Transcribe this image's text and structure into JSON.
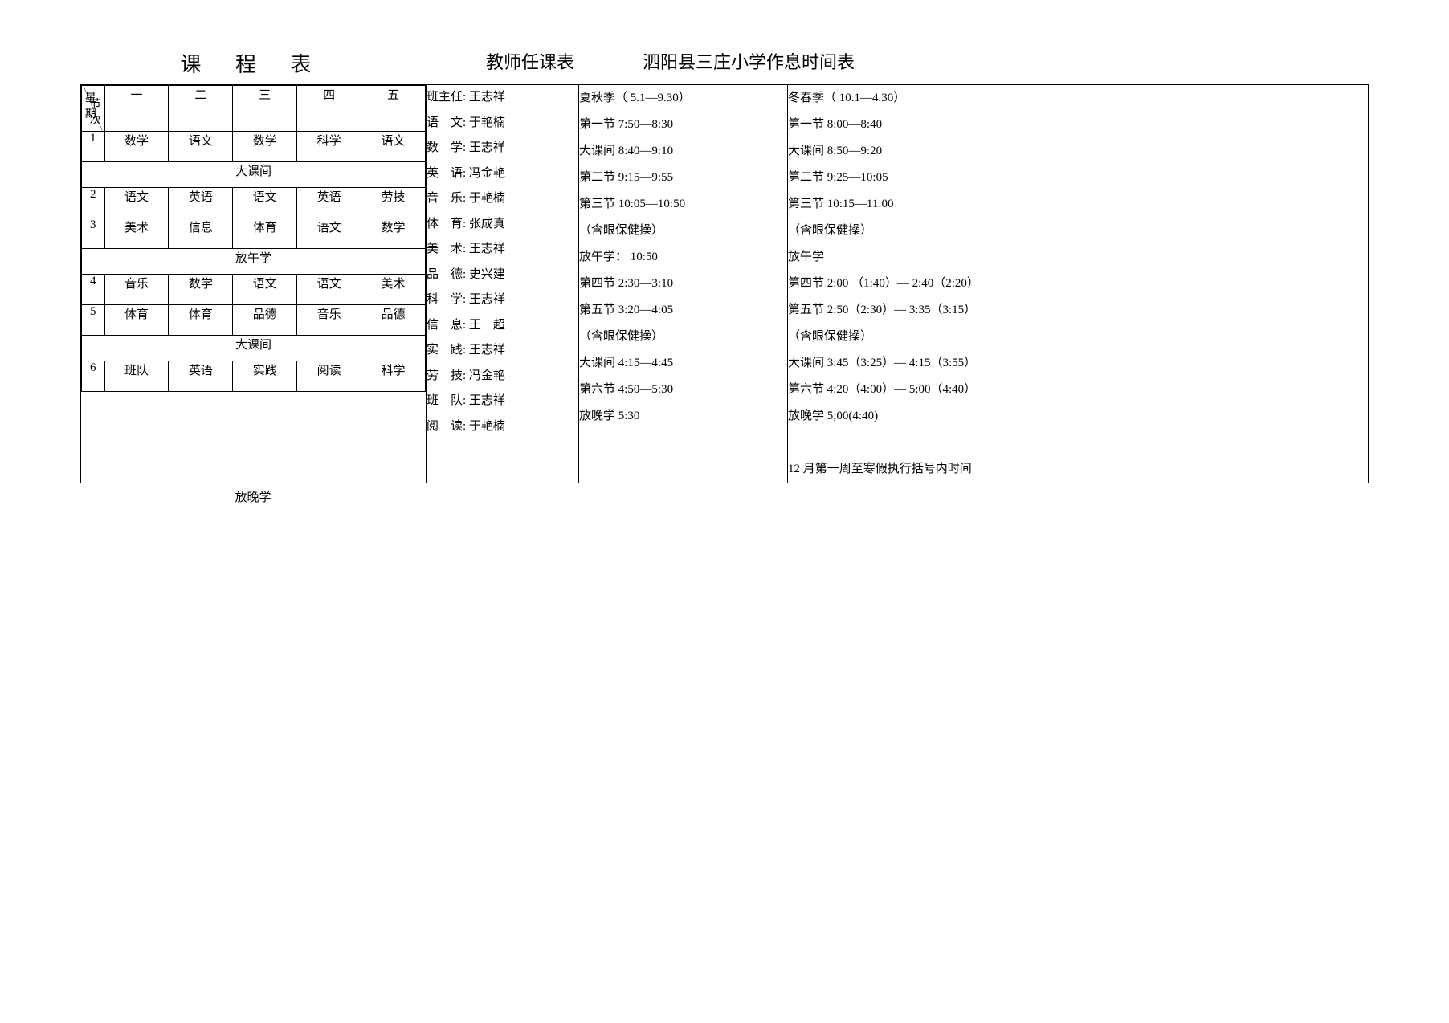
{
  "titles": {
    "schedule": "课 程 表",
    "teachers": "教师任课表",
    "timetable": "泗阳县三庄小学作息时间表"
  },
  "schedule": {
    "header_top": "星期",
    "header_bottom": "节次",
    "days": [
      "一",
      "二",
      "三",
      "四",
      "五"
    ],
    "rows": [
      {
        "period": "1",
        "cells": [
          "数学",
          "语文",
          "数学",
          "科学",
          "语文"
        ]
      },
      {
        "break": "大课间"
      },
      {
        "period": "2",
        "cells": [
          "语文",
          "英语",
          "语文",
          "英语",
          "劳技"
        ]
      },
      {
        "period": "3",
        "cells": [
          "美术",
          "信息",
          "体育",
          "语文",
          "数学"
        ]
      },
      {
        "break": "放午学"
      },
      {
        "period": "4",
        "cells": [
          "音乐",
          "数学",
          "语文",
          "语文",
          "美术"
        ]
      },
      {
        "period": "5",
        "cells": [
          "体育",
          "体育",
          "品德",
          "音乐",
          "品德"
        ]
      },
      {
        "break": "大课间"
      },
      {
        "period": "6",
        "cells": [
          "班队",
          "英语",
          "实践",
          "阅读",
          "科学"
        ]
      }
    ],
    "footer": "放晚学"
  },
  "teachers": [
    {
      "subject": "班主任",
      "name": "王志祥",
      "spaced": false
    },
    {
      "subject": "语　文",
      "name": "于艳楠",
      "spaced": true
    },
    {
      "subject": "数　学",
      "name": "王志祥",
      "spaced": true
    },
    {
      "subject": "英　语",
      "name": "冯金艳",
      "spaced": true
    },
    {
      "subject": "音　乐",
      "name": "于艳楠",
      "spaced": true
    },
    {
      "subject": "体　育",
      "name": "张成真",
      "spaced": true
    },
    {
      "subject": "美　术",
      "name": "王志祥",
      "spaced": true
    },
    {
      "subject": "品　德",
      "name": "史兴建",
      "spaced": true
    },
    {
      "subject": "科　学",
      "name": "王志祥",
      "spaced": true
    },
    {
      "subject": "信　息",
      "name": "王　超",
      "spaced": true
    },
    {
      "subject": "实　践",
      "name": "王志祥",
      "spaced": true
    },
    {
      "subject": "劳　技",
      "name": "冯金艳",
      "spaced": true
    },
    {
      "subject": "班　队",
      "name": "王志祥",
      "spaced": true
    },
    {
      "subject": "阅　读",
      "name": "于艳楠",
      "spaced": true
    }
  ],
  "time_summer": {
    "title": "夏秋季（ 5.1—9.30）",
    "lines": [
      "第一节 7:50—8:30",
      "大课间 8:40—9:10",
      "第二节 9:15—9:55",
      "第三节 10:05—10:50",
      "（含眼保健操）",
      "放午学：  10:50",
      "第四节 2:30—3:10",
      "第五节 3:20—4:05",
      "（含眼保健操）",
      "大课间 4:15—4:45",
      "第六节 4:50—5:30",
      "放晚学 5:30"
    ]
  },
  "time_winter": {
    "title": "冬春季（ 10.1—4.30）",
    "lines": [
      "第一节 8:00—8:40",
      "大课间 8:50—9:20",
      "第二节 9:25—10:05",
      "第三节 10:15—11:00",
      "（含眼保健操）",
      "放午学",
      "第四节 2:00 （1:40）— 2:40（2:20）",
      "第五节 2:50（2:30）— 3:35（3:15）",
      "（含眼保健操）",
      "大课间 3:45（3:25）— 4:15（3:55）",
      "第六节 4:20（4:00）— 5:00（4:40）",
      "放晚学 5;00(4:40)",
      "",
      "12 月第一周至寒假执行括号内时间"
    ]
  },
  "colors": {
    "text": "#000000",
    "background": "#ffffff",
    "border": "#000000"
  }
}
